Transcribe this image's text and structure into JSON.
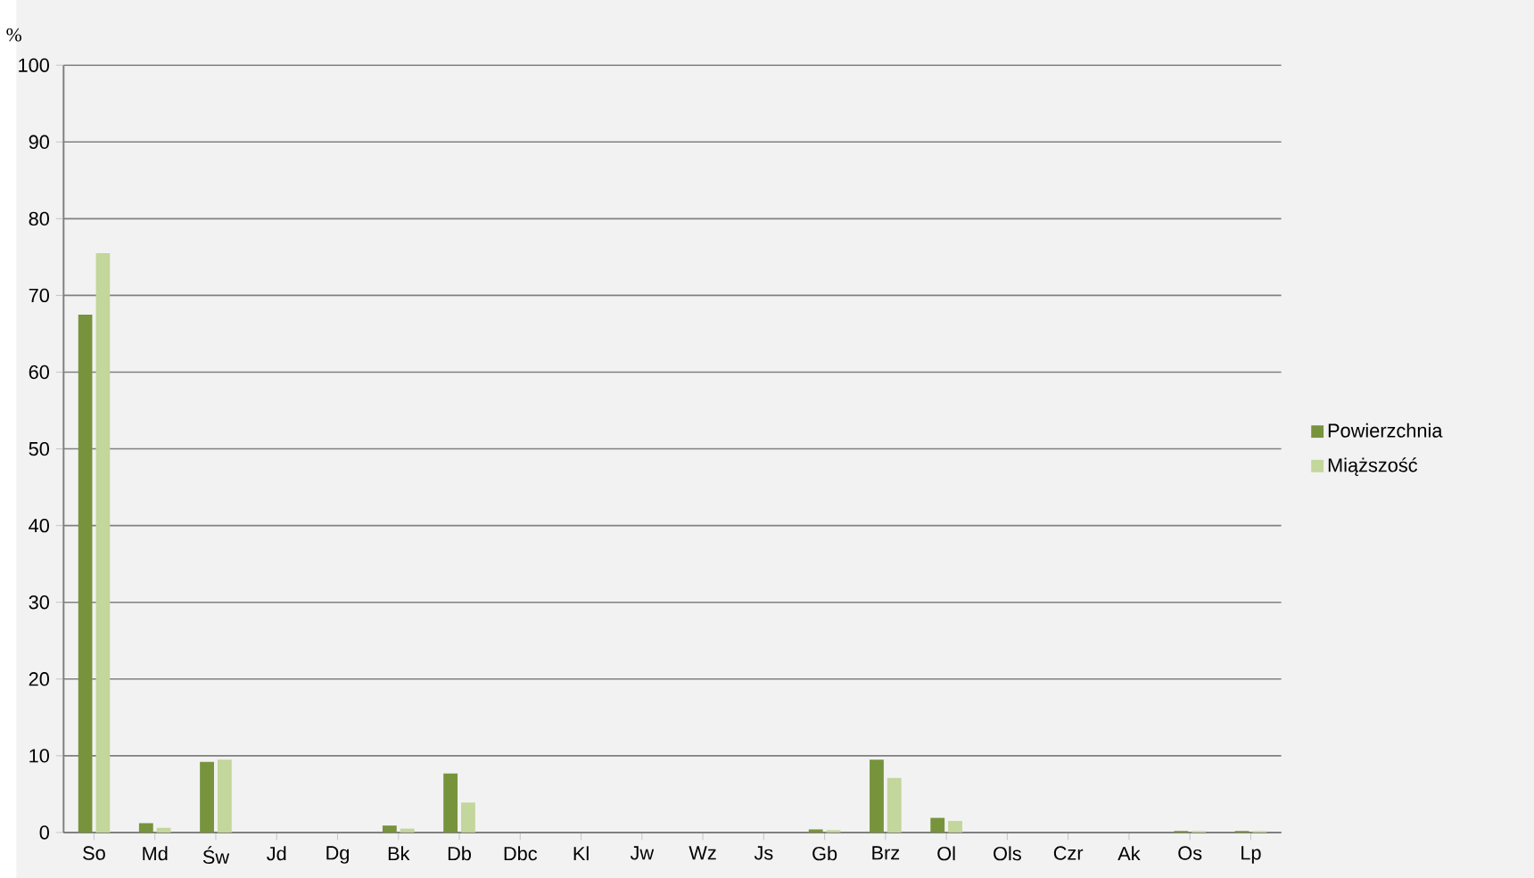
{
  "chart_data": {
    "type": "bar",
    "ylabel": "%",
    "categories": [
      "So",
      "Md",
      "Św",
      "Jd",
      "Dg",
      "Bk",
      "Db",
      "Dbc",
      "Kl",
      "Jw",
      "Wz",
      "Js",
      "Gb",
      "Brz",
      "Ol",
      "Ols",
      "Czr",
      "Ak",
      "Os",
      "Lp"
    ],
    "series": [
      {
        "name": "Powierzchnia",
        "color": "#77933c",
        "values": [
          67.5,
          1.2,
          9.2,
          0,
          0,
          0.9,
          7.7,
          0,
          0,
          0,
          0,
          0,
          0.4,
          9.5,
          1.9,
          0,
          0,
          0,
          0.2,
          0.2
        ]
      },
      {
        "name": "Miąższość",
        "color": "#c3d69b",
        "values": [
          75.5,
          0.6,
          9.5,
          0,
          0,
          0.5,
          3.9,
          0,
          0,
          0,
          0,
          0,
          0.3,
          7.1,
          1.5,
          0,
          0,
          0,
          0.2,
          0.2
        ]
      }
    ],
    "ylim": [
      0,
      100
    ],
    "yticks": [
      0,
      10,
      20,
      30,
      40,
      50,
      60,
      70,
      80,
      90,
      100
    ],
    "grid": "y",
    "legend": "right"
  }
}
